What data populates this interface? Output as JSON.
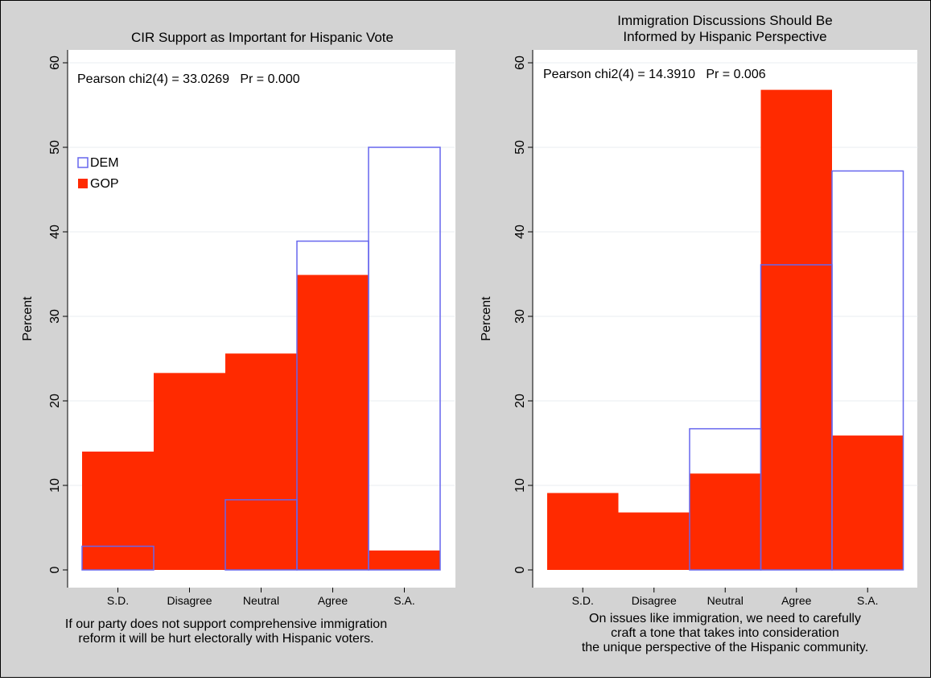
{
  "colors": {
    "background": "#d3d3d3",
    "plot_bg": "#ffffff",
    "gop_fill": "#ff2a00",
    "dem_outline": "#6666ee",
    "gridline": "#e8eef0"
  },
  "chart_data": [
    {
      "type": "bar",
      "title": "CIR Support as Important for Hispanic Vote",
      "annotation": "Pearson chi2(4) = 33.0269   Pr = 0.000",
      "ylabel": "Percent",
      "xlabel_lines": [
        "If our party does not support comprehensive immigration",
        "reform it will be hurt electorally with Hispanic voters."
      ],
      "categories": [
        "S.D.",
        "Disagree",
        "Neutral",
        "Agree",
        "S.A."
      ],
      "ylim": [
        0,
        60
      ],
      "yticks": [
        0,
        10,
        20,
        30,
        40,
        50,
        60
      ],
      "legend": {
        "placement": "top-left",
        "entries": [
          "DEM",
          "GOP"
        ]
      },
      "series": [
        {
          "name": "DEM",
          "style": "outline",
          "values": [
            2.8,
            0,
            8.3,
            38.9,
            50
          ]
        },
        {
          "name": "GOP",
          "style": "filled",
          "values": [
            14,
            23.3,
            25.6,
            34.9,
            2.3
          ]
        }
      ]
    },
    {
      "type": "bar",
      "title_lines": [
        "Immigration Discussions Should Be",
        "Informed by Hispanic Perspective"
      ],
      "annotation": "Pearson chi2(4) = 14.3910   Pr = 0.006",
      "ylabel": "Percent",
      "xlabel_lines": [
        "On issues like immigration, we need to carefully",
        "craft a tone that takes into consideration",
        "the unique perspective of the Hispanic community."
      ],
      "categories": [
        "S.D.",
        "Disagree",
        "Neutral",
        "Agree",
        "S.A."
      ],
      "ylim": [
        0,
        60
      ],
      "yticks": [
        0,
        10,
        20,
        30,
        40,
        50,
        60
      ],
      "series": [
        {
          "name": "DEM",
          "style": "outline",
          "values": [
            0,
            0,
            16.7,
            36.1,
            47.2
          ]
        },
        {
          "name": "GOP",
          "style": "filled",
          "values": [
            9.1,
            6.8,
            11.4,
            56.8,
            15.9
          ]
        }
      ]
    }
  ]
}
